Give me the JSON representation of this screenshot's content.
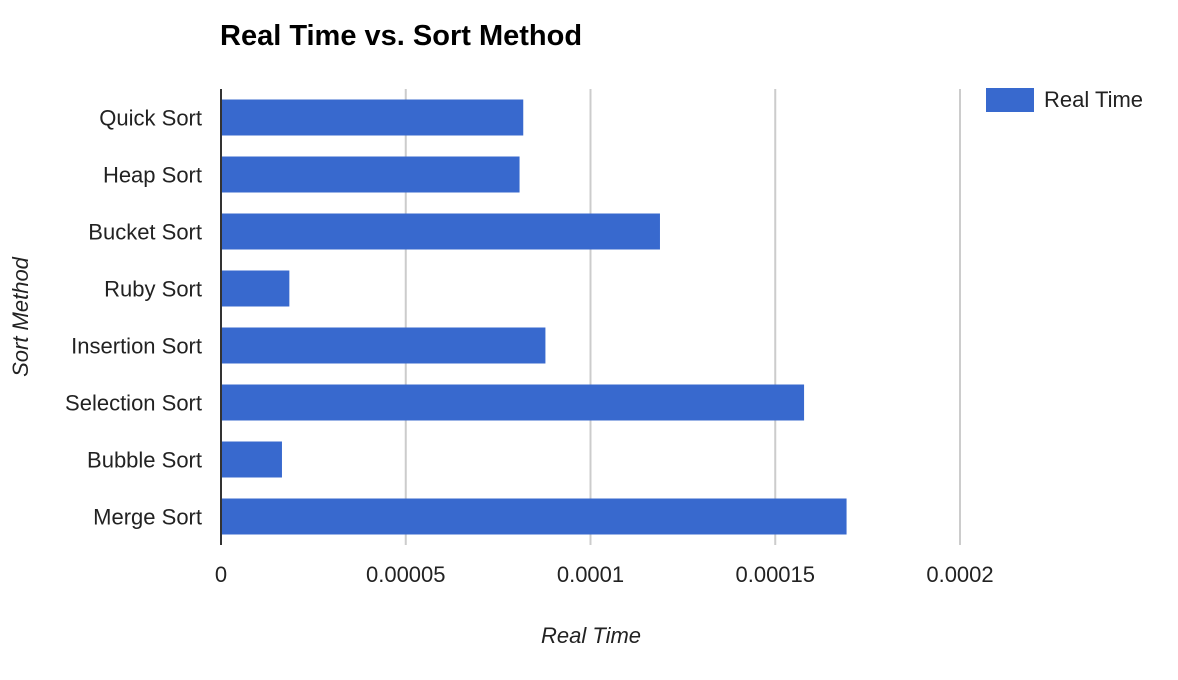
{
  "chart_data": {
    "type": "bar",
    "orientation": "horizontal",
    "title": "Real Time vs. Sort Method",
    "xlabel": "Real Time",
    "ylabel": "Sort Method",
    "categories": [
      "Quick Sort",
      "Heap Sort",
      "Bucket Sort",
      "Ruby Sort",
      "Insertion Sort",
      "Selection Sort",
      "Bubble Sort",
      "Merge Sort"
    ],
    "series": [
      {
        "name": "Real Time",
        "color": "#3869ce",
        "values": [
          8.18e-05,
          8.08e-05,
          0.0001188,
          1.85e-05,
          8.78e-05,
          0.0001578,
          1.65e-05,
          0.0001693
        ]
      }
    ],
    "xlim": [
      0,
      0.00025
    ],
    "x_ticks": [
      0,
      5e-05,
      0.0001,
      0.00015,
      0.0002
    ],
    "x_tick_labels": [
      "0",
      "0.00005",
      "0.0001",
      "0.00015",
      "0.0002"
    ],
    "grid": true,
    "legend_position": "top-right"
  }
}
